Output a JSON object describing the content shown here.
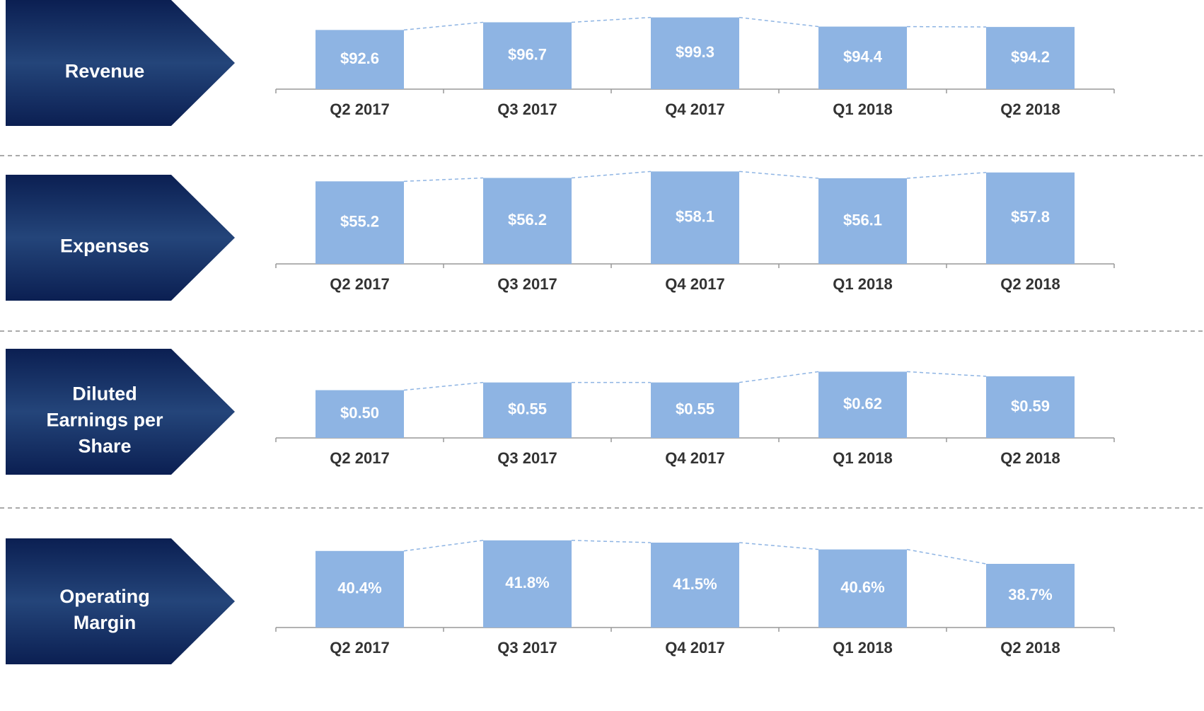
{
  "chart_data": [
    {
      "type": "bar",
      "title": "Revenue",
      "categories": [
        "Q2 2017",
        "Q3 2017",
        "Q4 2017",
        "Q1 2018",
        "Q2 2018"
      ],
      "values": [
        92.6,
        96.7,
        99.3,
        94.4,
        94.2
      ],
      "value_labels": [
        "$92.6",
        "$96.7",
        "$99.3",
        "$94.4",
        "$94.2"
      ],
      "ylim": [
        61,
        112
      ],
      "color": "#8eb4e3"
    },
    {
      "type": "bar",
      "title": "Expenses",
      "categories": [
        "Q2 2017",
        "Q3 2017",
        "Q4 2017",
        "Q1 2018",
        "Q2 2018"
      ],
      "values": [
        55.2,
        56.2,
        58.1,
        56.1,
        57.8
      ],
      "value_labels": [
        "$55.2",
        "$56.2",
        "$58.1",
        "$56.1",
        "$57.8"
      ],
      "ylim": [
        31,
        59
      ],
      "color": "#8eb4e3"
    },
    {
      "type": "bar",
      "title": "Diluted Earnings per Share",
      "categories": [
        "Q2 2017",
        "Q3 2017",
        "Q4 2017",
        "Q1 2018",
        "Q2 2018"
      ],
      "values": [
        0.5,
        0.55,
        0.55,
        0.62,
        0.59
      ],
      "value_labels": [
        "$0.50",
        "$0.55",
        "$0.55",
        "$0.62",
        "$0.59"
      ],
      "ylim": [
        0.19,
        0.81
      ],
      "color": "#8eb4e3"
    },
    {
      "type": "bar",
      "title": "Operating Margin",
      "categories": [
        "Q2 2017",
        "Q3 2017",
        "Q4 2017",
        "Q1 2018",
        "Q2 2018"
      ],
      "values": [
        40.4,
        41.8,
        41.5,
        40.6,
        38.7
      ],
      "value_labels": [
        "40.4%",
        "41.8%",
        "41.5%",
        "40.6%",
        "38.7%"
      ],
      "ylim": [
        30.3,
        42.9
      ],
      "color": "#8eb4e3"
    }
  ]
}
